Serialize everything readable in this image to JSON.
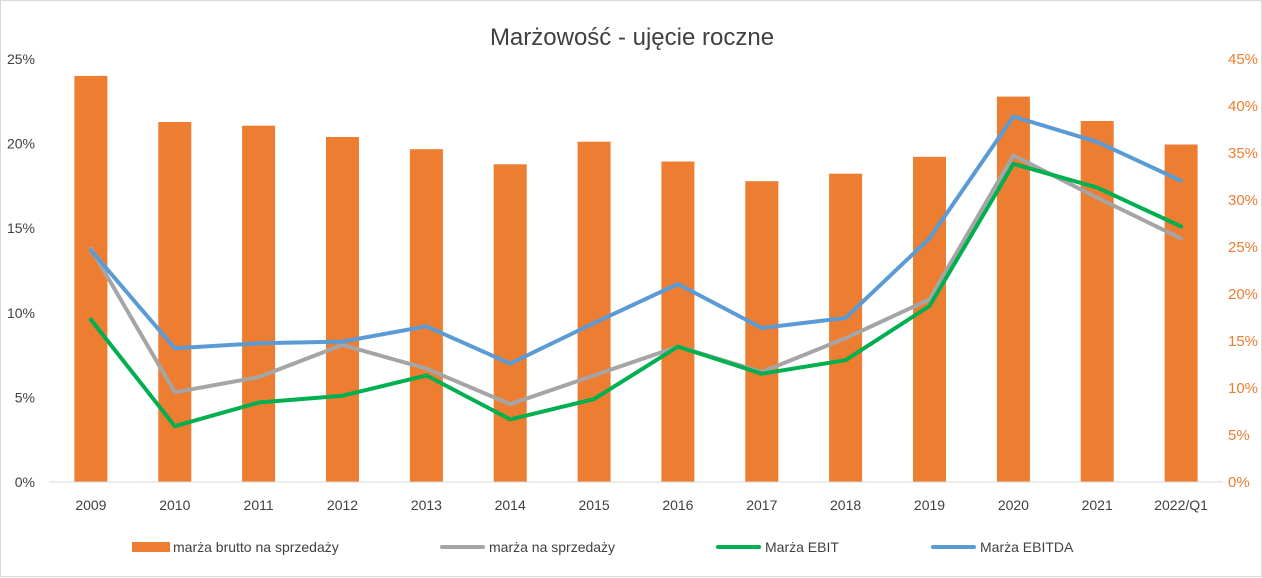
{
  "chart_data": {
    "type": "bar",
    "title": "Marżowość - ujęcie roczne",
    "categories": [
      "2009",
      "2010",
      "2011",
      "2012",
      "2013",
      "2014",
      "2015",
      "2016",
      "2017",
      "2018",
      "2019",
      "2020",
      "2021",
      "2022/Q1"
    ],
    "y_left": {
      "ylim": [
        0,
        25
      ],
      "ticks": [
        "0%",
        "5%",
        "10%",
        "15%",
        "20%",
        "25%"
      ]
    },
    "y_right": {
      "ylim": [
        0,
        45
      ],
      "ticks": [
        "0%",
        "5%",
        "10%",
        "15%",
        "20%",
        "25%",
        "30%",
        "35%",
        "40%",
        "45%"
      ]
    },
    "bar_series": {
      "name": "marża brutto na sprzedaży",
      "axis": "right",
      "color": "#ED7D31",
      "values": [
        43.2,
        38.3,
        37.9,
        36.7,
        35.4,
        33.8,
        36.2,
        34.1,
        32.0,
        32.8,
        34.6,
        41.0,
        38.4,
        35.9
      ]
    },
    "line_series": [
      {
        "name": "marża na sprzedaży",
        "axis": "left",
        "color": "#A5A5A5",
        "values": [
          13.8,
          5.3,
          6.2,
          8.1,
          6.7,
          4.6,
          6.3,
          8.0,
          6.5,
          8.5,
          10.8,
          19.3,
          16.8,
          14.4
        ]
      },
      {
        "name": "Marża EBIT",
        "axis": "left",
        "color": "#00B050",
        "values": [
          9.6,
          3.3,
          4.7,
          5.1,
          6.3,
          3.7,
          4.9,
          8.0,
          6.4,
          7.2,
          10.4,
          18.8,
          17.4,
          15.1
        ]
      },
      {
        "name": "Marża EBITDA",
        "axis": "left",
        "color": "#5B9BD5",
        "values": [
          13.7,
          7.9,
          8.2,
          8.3,
          9.2,
          7.0,
          9.4,
          11.7,
          9.1,
          9.7,
          14.4,
          21.6,
          20.1,
          17.8
        ]
      }
    ],
    "legend_position": "bottom",
    "grid": false
  }
}
